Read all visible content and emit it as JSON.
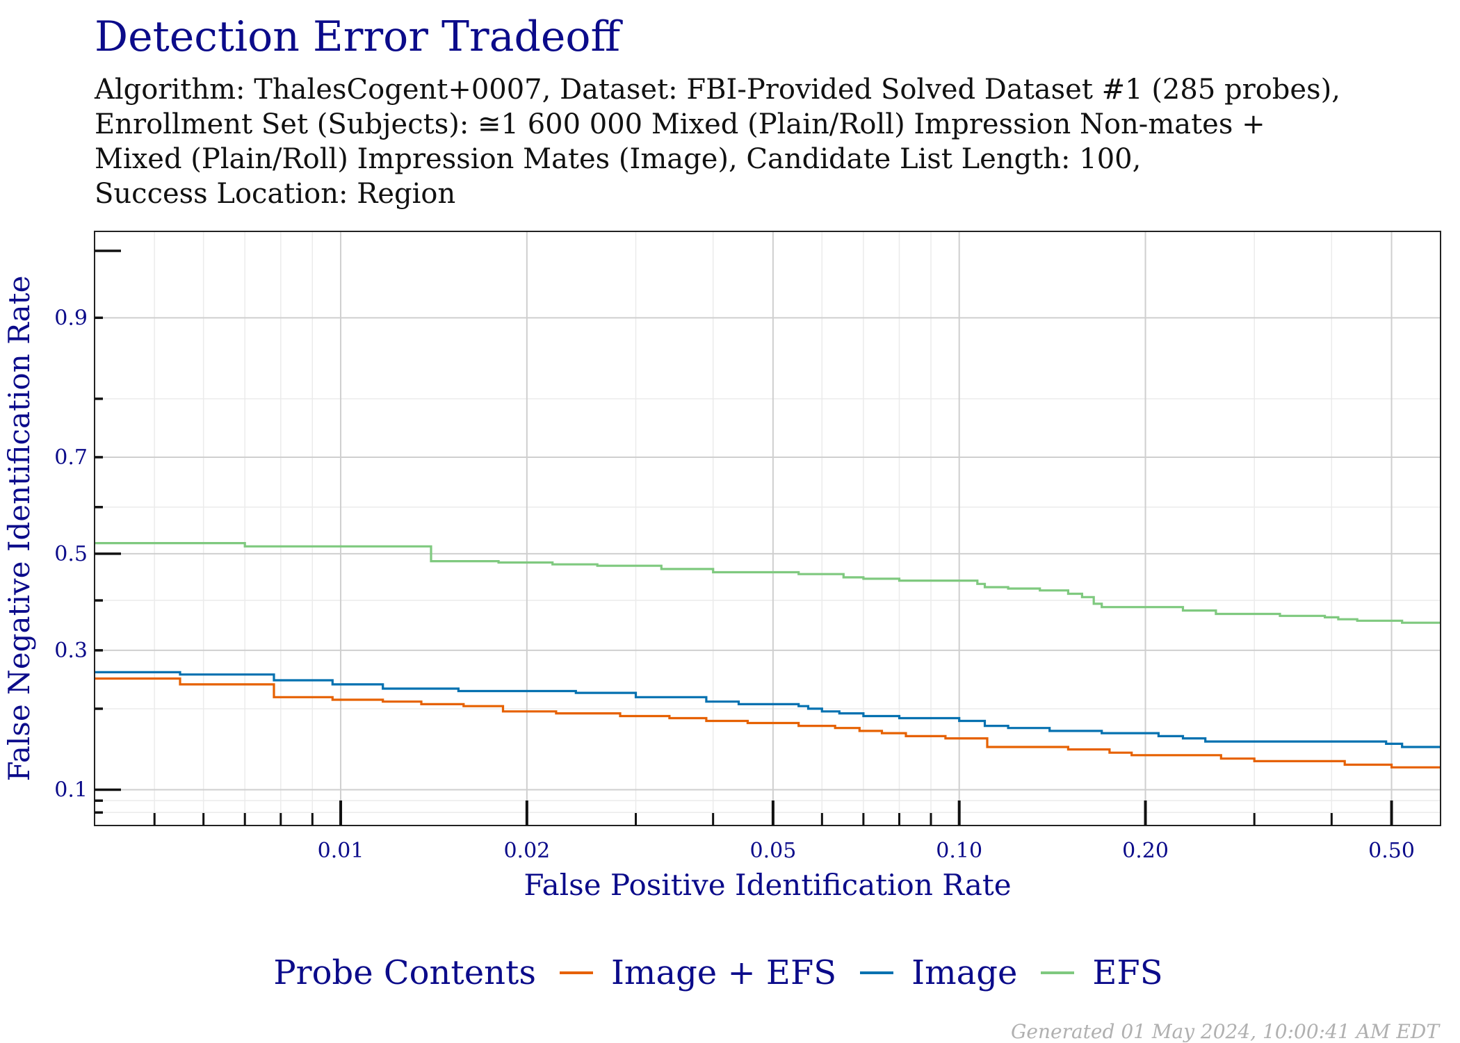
{
  "title": "Detection Error Tradeoff",
  "subtitle_lines": [
    "Algorithm: ThalesCogent+0007, Dataset: FBI-Provided Solved Dataset #1 (285 probes),",
    "Enrollment Set (Subjects):  ≅1 600 000 Mixed (Plain/Roll) Impression Non-mates +",
    "Mixed (Plain/Roll) Impression Mates (Image), Candidate List Length: 100,",
    "Success Location: Region"
  ],
  "footer": "Generated 01 May 2024, 10:00:41 AM EDT",
  "legend": {
    "title": "Probe Contents",
    "position": "bottom",
    "items": [
      {
        "label": "Image + EFS",
        "color": "#e66101"
      },
      {
        "label": "Image",
        "color": "#0571b0"
      },
      {
        "label": "EFS",
        "color": "#7fc97f"
      }
    ]
  },
  "chart_data": {
    "type": "line",
    "step": true,
    "xlabel": "False Positive Identification Rate",
    "ylabel": "False Negative Identification Rate",
    "x_scale": "log",
    "y_scale": "probit",
    "xlim": [
      0.004,
      0.6
    ],
    "ylim": [
      0.07,
      0.96
    ],
    "grid": true,
    "x_ticks": [
      {
        "value": 0.01,
        "label": "0.01"
      },
      {
        "value": 0.02,
        "label": "0.02"
      },
      {
        "value": 0.05,
        "label": "0.05"
      },
      {
        "value": 0.1,
        "label": "0.10"
      },
      {
        "value": 0.2,
        "label": "0.20"
      },
      {
        "value": 0.5,
        "label": "0.50"
      }
    ],
    "y_ticks": [
      {
        "value": 0.1,
        "label": "0.1"
      },
      {
        "value": 0.3,
        "label": "0.3"
      },
      {
        "value": 0.5,
        "label": "0.5"
      },
      {
        "value": 0.7,
        "label": "0.7"
      },
      {
        "value": 0.9,
        "label": "0.9"
      }
    ],
    "series": [
      {
        "name": "EFS",
        "color": "#7fc97f",
        "points": [
          [
            0.004,
            0.523
          ],
          [
            0.007,
            0.516
          ],
          [
            0.014,
            0.484
          ],
          [
            0.018,
            0.481
          ],
          [
            0.022,
            0.477
          ],
          [
            0.026,
            0.474
          ],
          [
            0.033,
            0.467
          ],
          [
            0.04,
            0.46
          ],
          [
            0.055,
            0.456
          ],
          [
            0.065,
            0.449
          ],
          [
            0.07,
            0.446
          ],
          [
            0.08,
            0.442
          ],
          [
            0.107,
            0.435
          ],
          [
            0.11,
            0.428
          ],
          [
            0.12,
            0.425
          ],
          [
            0.135,
            0.421
          ],
          [
            0.15,
            0.414
          ],
          [
            0.158,
            0.407
          ],
          [
            0.165,
            0.393
          ],
          [
            0.17,
            0.386
          ],
          [
            0.23,
            0.379
          ],
          [
            0.26,
            0.372
          ],
          [
            0.33,
            0.368
          ],
          [
            0.39,
            0.365
          ],
          [
            0.41,
            0.361
          ],
          [
            0.44,
            0.358
          ],
          [
            0.52,
            0.354
          ],
          [
            0.6,
            0.354
          ]
        ]
      },
      {
        "name": "Image",
        "color": "#0571b0",
        "points": [
          [
            0.004,
            0.26
          ],
          [
            0.0055,
            0.256
          ],
          [
            0.0078,
            0.246
          ],
          [
            0.0097,
            0.239
          ],
          [
            0.0117,
            0.232
          ],
          [
            0.0155,
            0.228
          ],
          [
            0.024,
            0.225
          ],
          [
            0.03,
            0.218
          ],
          [
            0.039,
            0.211
          ],
          [
            0.044,
            0.207
          ],
          [
            0.055,
            0.204
          ],
          [
            0.057,
            0.2
          ],
          [
            0.06,
            0.196
          ],
          [
            0.064,
            0.193
          ],
          [
            0.07,
            0.189
          ],
          [
            0.08,
            0.186
          ],
          [
            0.1,
            0.182
          ],
          [
            0.11,
            0.175
          ],
          [
            0.12,
            0.172
          ],
          [
            0.14,
            0.168
          ],
          [
            0.17,
            0.165
          ],
          [
            0.21,
            0.161
          ],
          [
            0.23,
            0.158
          ],
          [
            0.25,
            0.154
          ],
          [
            0.49,
            0.151
          ],
          [
            0.52,
            0.147
          ],
          [
            0.6,
            0.147
          ]
        ]
      },
      {
        "name": "Image + EFS",
        "color": "#e66101",
        "points": [
          [
            0.004,
            0.249
          ],
          [
            0.0055,
            0.239
          ],
          [
            0.0078,
            0.218
          ],
          [
            0.0097,
            0.214
          ],
          [
            0.0117,
            0.211
          ],
          [
            0.0135,
            0.207
          ],
          [
            0.0158,
            0.204
          ],
          [
            0.0183,
            0.196
          ],
          [
            0.0223,
            0.193
          ],
          [
            0.0283,
            0.189
          ],
          [
            0.034,
            0.186
          ],
          [
            0.039,
            0.182
          ],
          [
            0.0455,
            0.179
          ],
          [
            0.055,
            0.175
          ],
          [
            0.063,
            0.172
          ],
          [
            0.069,
            0.168
          ],
          [
            0.075,
            0.165
          ],
          [
            0.082,
            0.161
          ],
          [
            0.095,
            0.158
          ],
          [
            0.111,
            0.147
          ],
          [
            0.15,
            0.144
          ],
          [
            0.175,
            0.14
          ],
          [
            0.19,
            0.137
          ],
          [
            0.265,
            0.133
          ],
          [
            0.3,
            0.13
          ],
          [
            0.42,
            0.126
          ],
          [
            0.5,
            0.123
          ],
          [
            0.6,
            0.123
          ]
        ]
      }
    ]
  }
}
